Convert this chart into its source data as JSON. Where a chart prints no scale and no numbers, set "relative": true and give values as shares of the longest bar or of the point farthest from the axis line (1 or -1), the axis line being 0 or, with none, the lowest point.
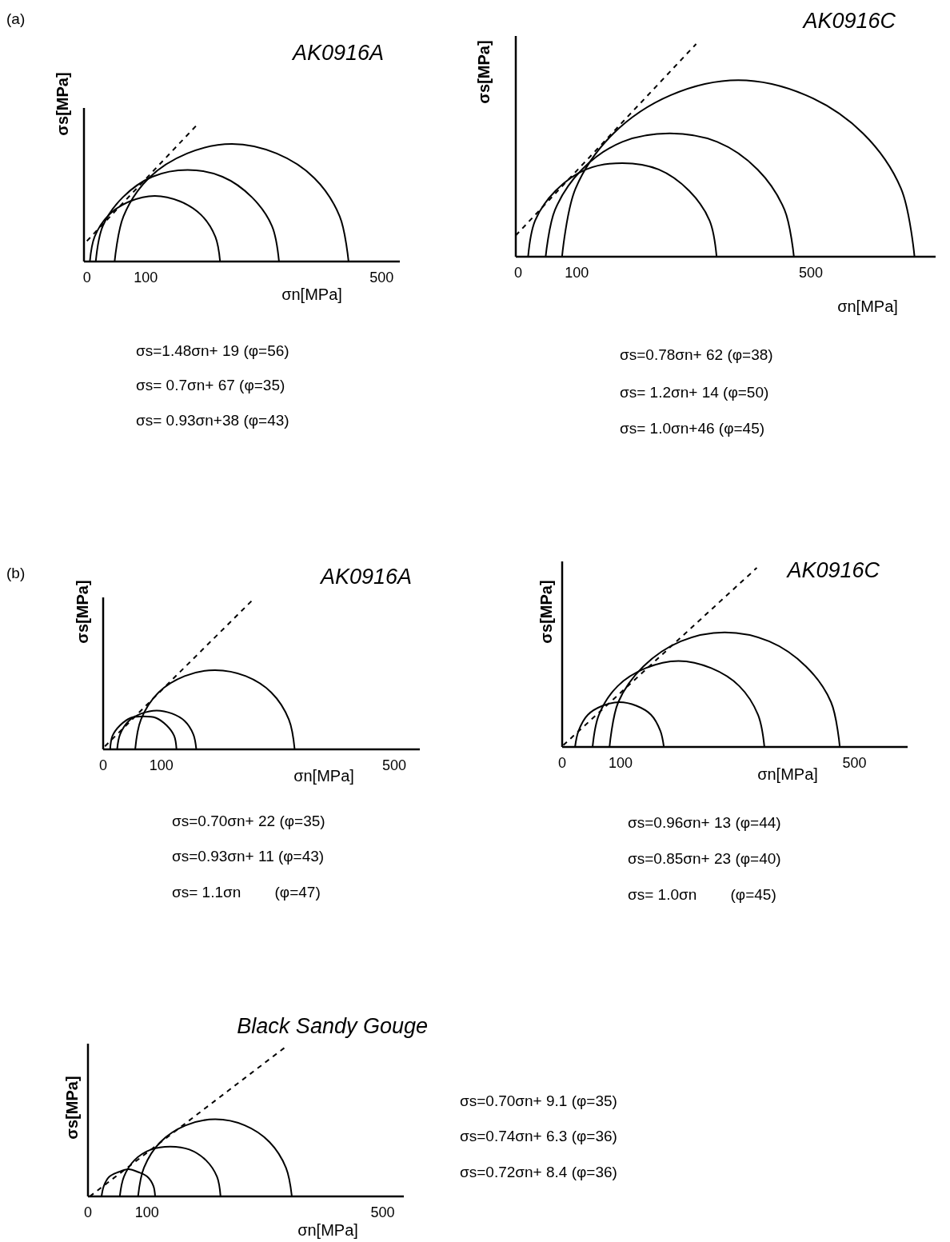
{
  "chart_data": [
    {
      "type": "line",
      "title": "AK0916A",
      "xlabel": "σn[MPa]",
      "ylabel": "σs[MPa]",
      "relative": true,
      "xlim": [
        -5,
        531
      ],
      "xticks": [
        0,
        100,
        500
      ],
      "annotations": [
        "(a)",
        "σs=1.48σn+ 19 (φ=56)",
        "σs= 0.7σn+ 67 (φ=35)",
        "σs= 0.93σn+38 (φ=43)"
      ],
      "series": [
        {
          "color": "#000000",
          "x": [
            5,
            13,
            37,
            73,
            115,
            158,
            194,
            218,
            226
          ],
          "values": [
            0,
            0.18,
            0.34,
            0.44,
            0.48,
            0.44,
            0.34,
            0.18,
            0
          ]
        },
        {
          "color": "#000000",
          "x": [
            15,
            27,
            61,
            111,
            171,
            230,
            280,
            314,
            326
          ],
          "values": [
            0,
            0.26,
            0.47,
            0.62,
            0.67,
            0.62,
            0.47,
            0.26,
            0
          ]
        },
        {
          "color": "#000000",
          "x": [
            47,
            62,
            105,
            170,
            246,
            322,
            386,
            429,
            444
          ],
          "values": [
            0,
            0.33,
            0.61,
            0.79,
            0.86,
            0.79,
            0.61,
            0.33,
            0
          ]
        },
        {
          "color": "#000000",
          "line_style": "dashed",
          "x": [
            0,
            187
          ],
          "values": [
            0.15,
            1
          ]
        }
      ]
    },
    {
      "type": "line",
      "title": "AK0916C",
      "xlabel": "σn[MPa]",
      "ylabel": "σs[MPa]",
      "relative": true,
      "xlim": [
        -4,
        713
      ],
      "xticks": [
        0,
        100,
        500
      ],
      "annotations": [
        "σs=0.78σn+ 62 (φ=38)",
        "σs= 1.2σn+ 14 (φ=50)",
        "σs= 1.0σn+46 (φ=45)"
      ],
      "series": [
        {
          "color": "#000000",
          "x": [
            17,
            29,
            64,
            116,
            178,
            240,
            292,
            327,
            339
          ],
          "values": [
            0,
            0.17,
            0.31,
            0.41,
            0.44,
            0.41,
            0.31,
            0.17,
            0
          ]
        },
        {
          "color": "#000000",
          "x": [
            47,
            63,
            109,
            178,
            259,
            340,
            409,
            455,
            471
          ],
          "values": [
            0,
            0.22,
            0.41,
            0.54,
            0.58,
            0.54,
            0.41,
            0.22,
            0
          ]
        },
        {
          "color": "#000000",
          "x": [
            75,
            98,
            163,
            261,
            376,
            491,
            589,
            654,
            677
          ],
          "values": [
            0,
            0.32,
            0.58,
            0.76,
            0.83,
            0.76,
            0.58,
            0.32,
            0
          ]
        },
        {
          "color": "#000000",
          "line_style": "dashed",
          "x": [
            -4,
            304
          ],
          "values": [
            0.1,
            1
          ]
        }
      ]
    },
    {
      "type": "line",
      "title": "AK0916A",
      "xlabel": "σn[MPa]",
      "ylabel": "σs[MPa]",
      "relative": true,
      "xlim": [
        0,
        544
      ],
      "xticks": [
        0,
        100,
        500
      ],
      "annotations": [
        "(b)",
        "σs=0.70σn+ 22 (φ=35)",
        "σs=0.93σn+ 11 (φ=43)",
        "σs= 1.1σn        (φ=47)"
      ],
      "series": [
        {
          "color": "#000000",
          "x": [
            12,
            16,
            29,
            47,
            69,
            91,
            109,
            122,
            126
          ],
          "values": [
            0,
            0.09,
            0.16,
            0.21,
            0.22,
            0.21,
            0.16,
            0.09,
            0
          ]
        },
        {
          "color": "#000000",
          "x": [
            24,
            29,
            44,
            66,
            92,
            118,
            140,
            155,
            160
          ],
          "values": [
            0,
            0.1,
            0.19,
            0.24,
            0.26,
            0.24,
            0.19,
            0.1,
            0
          ]
        },
        {
          "color": "#000000",
          "x": [
            55,
            65,
            95,
            140,
            192,
            245,
            289,
            319,
            329
          ],
          "values": [
            0,
            0.2,
            0.38,
            0.49,
            0.53,
            0.49,
            0.38,
            0.2,
            0
          ]
        },
        {
          "color": "#000000",
          "line_style": "dashed",
          "x": [
            3,
            257
          ],
          "values": [
            0.02,
            1
          ]
        }
      ]
    },
    {
      "type": "line",
      "title": "AK0916C",
      "xlabel": "σn[MPa]",
      "ylabel": "σs[MPa]",
      "relative": true,
      "xlim": [
        0,
        591
      ],
      "xticks": [
        0,
        100,
        500
      ],
      "annotations": [
        "σs=0.96σn+ 13 (φ=44)",
        "σs=0.85σn+ 23 (φ=40)",
        "σs= 1.0σn        (φ=45)"
      ],
      "series": [
        {
          "color": "#000000",
          "x": [
            22,
            28,
            44,
            69,
            98,
            127,
            152,
            168,
            174
          ],
          "values": [
            0,
            0.09,
            0.18,
            0.23,
            0.25,
            0.23,
            0.18,
            0.09,
            0
          ]
        },
        {
          "color": "#000000",
          "x": [
            52,
            63,
            95,
            143,
            199,
            255,
            303,
            335,
            346
          ],
          "values": [
            0,
            0.18,
            0.34,
            0.44,
            0.48,
            0.44,
            0.34,
            0.18,
            0
          ]
        },
        {
          "color": "#000000",
          "x": [
            81,
            96,
            139,
            203,
            278,
            354,
            417,
            460,
            475
          ],
          "values": [
            0,
            0.25,
            0.45,
            0.59,
            0.64,
            0.59,
            0.45,
            0.25,
            0
          ]
        },
        {
          "color": "#000000",
          "line_style": "dashed",
          "x": [
            2,
            333
          ],
          "values": [
            0.01,
            1
          ]
        }
      ]
    },
    {
      "type": "line",
      "title": "Black Sandy Gouge",
      "xlabel": "σn[MPa]",
      "ylabel": "σs[MPa]",
      "relative": true,
      "xlim": [
        0,
        536
      ],
      "xticks": [
        0,
        100,
        500
      ],
      "annotations": [
        "σs=0.70σn+ 9.1 (φ=35)",
        "σs=0.74σn+ 6.3 (φ=36)",
        "σs=0.72σn+ 8.4 (φ=36)"
      ],
      "series": [
        {
          "color": "#000000",
          "x": [
            23,
            27,
            36,
            51,
            69,
            86,
            101,
            111,
            114
          ],
          "values": [
            0,
            0.07,
            0.13,
            0.16,
            0.18,
            0.16,
            0.13,
            0.07,
            0
          ]
        },
        {
          "color": "#000000",
          "x": [
            54,
            61,
            79,
            107,
            140,
            172,
            200,
            219,
            225
          ],
          "values": [
            0,
            0.13,
            0.24,
            0.31,
            0.33,
            0.31,
            0.24,
            0.13,
            0
          ]
        },
        {
          "color": "#000000",
          "x": [
            85,
            95,
            123,
            166,
            216,
            266,
            308,
            336,
            346
          ],
          "values": [
            0,
            0.19,
            0.36,
            0.47,
            0.51,
            0.47,
            0.36,
            0.19,
            0
          ]
        },
        {
          "color": "#000000",
          "line_style": "dashed",
          "x": [
            3,
            339
          ],
          "values": [
            0,
            1
          ]
        }
      ]
    }
  ]
}
